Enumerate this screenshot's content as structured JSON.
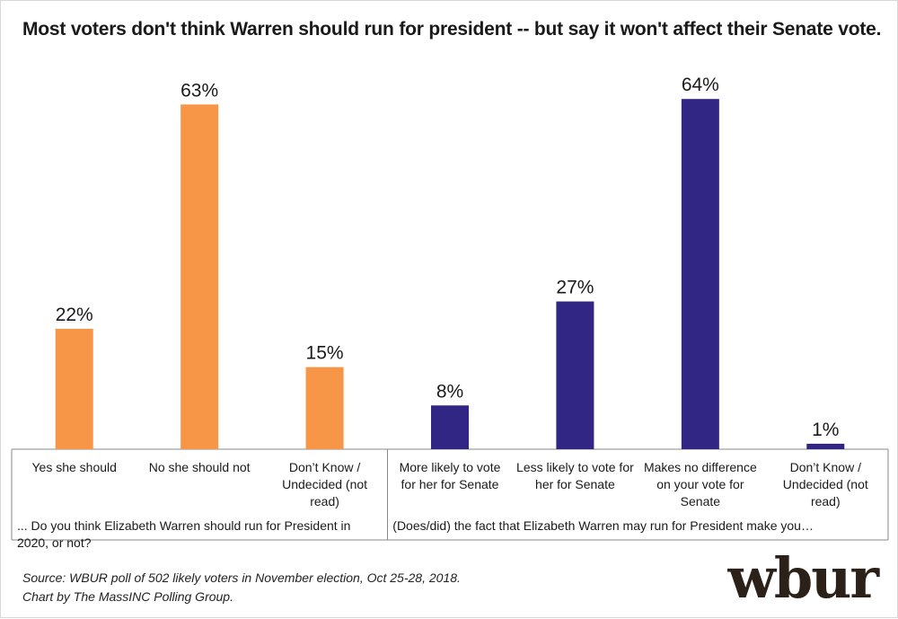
{
  "title": "Most voters don't think Warren should run for president -- but say it won't affect their Senate vote.",
  "source_lines": [
    "Source: WBUR poll of 502 likely voters in November election, Oct 25-28, 2018.",
    "Chart by The MassINC Polling Group."
  ],
  "logo_text": "wbur",
  "colors": {
    "group1": "#f79646",
    "group2": "#312683",
    "axis": "#888888",
    "text": "#1a1a1a"
  },
  "chart_data": {
    "type": "bar",
    "title": "Most voters don't think Warren should run for president -- but say it won't affect their Senate vote.",
    "ylim": [
      0,
      66
    ],
    "grid": false,
    "value_suffix": "%",
    "groups": [
      {
        "question": "... Do you think Elizabeth Warren should run for President in 2020, or not?",
        "color": "#f79646",
        "categories": [
          "Yes she should",
          "No she should not",
          "Don’t Know / Undecided (not read)"
        ],
        "values": [
          22,
          63,
          15
        ]
      },
      {
        "question": "(Does/did) the fact that Elizabeth Warren may run for President make you…",
        "color": "#312683",
        "categories": [
          "More likely to vote for her for Senate",
          "Less likely to vote for her for Senate",
          "Makes no difference on your vote for Senate",
          "Don’t Know / Undecided (not read)"
        ],
        "values": [
          8,
          27,
          64,
          1
        ]
      }
    ]
  }
}
